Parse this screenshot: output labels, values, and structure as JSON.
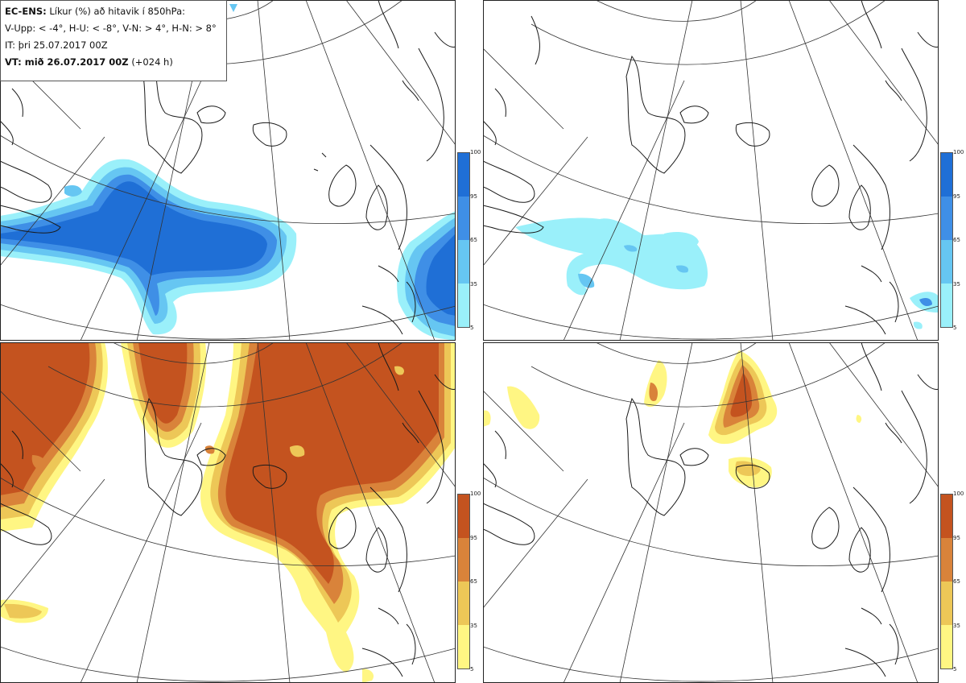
{
  "header": {
    "product": "EC-ENS:",
    "title_rest": "Líkur (%) að hitavik í 850hPa:",
    "legend_line": "V-Upp: < -4°, H-U: < -8°, V-N: > 4°, H-N: > 8°",
    "issue_time": "IT: þri 25.07.2017 00Z",
    "valid_label": "VT: mið 26.07.2017 00Z",
    "lead": "(+024 h)"
  },
  "colorbars": {
    "cold": {
      "ticks": [
        "100",
        "95",
        "65",
        "35",
        "5"
      ],
      "colors": [
        "#1f6fd6",
        "#3f8fe6",
        "#66c6f2",
        "#9af0fa"
      ]
    },
    "warm": {
      "ticks": [
        "100",
        "95",
        "65",
        "35",
        "5"
      ],
      "colors": [
        "#c4531f",
        "#d9833a",
        "#edc757",
        "#fff683"
      ]
    }
  },
  "panels": [
    {
      "id": "V-Upp",
      "palette": "cold"
    },
    {
      "id": "H-U",
      "palette": "cold"
    },
    {
      "id": "V-N",
      "palette": "warm"
    },
    {
      "id": "H-N",
      "palette": "warm"
    }
  ],
  "colors": {
    "coast": "#1a1a1a",
    "grid": "#333333"
  }
}
